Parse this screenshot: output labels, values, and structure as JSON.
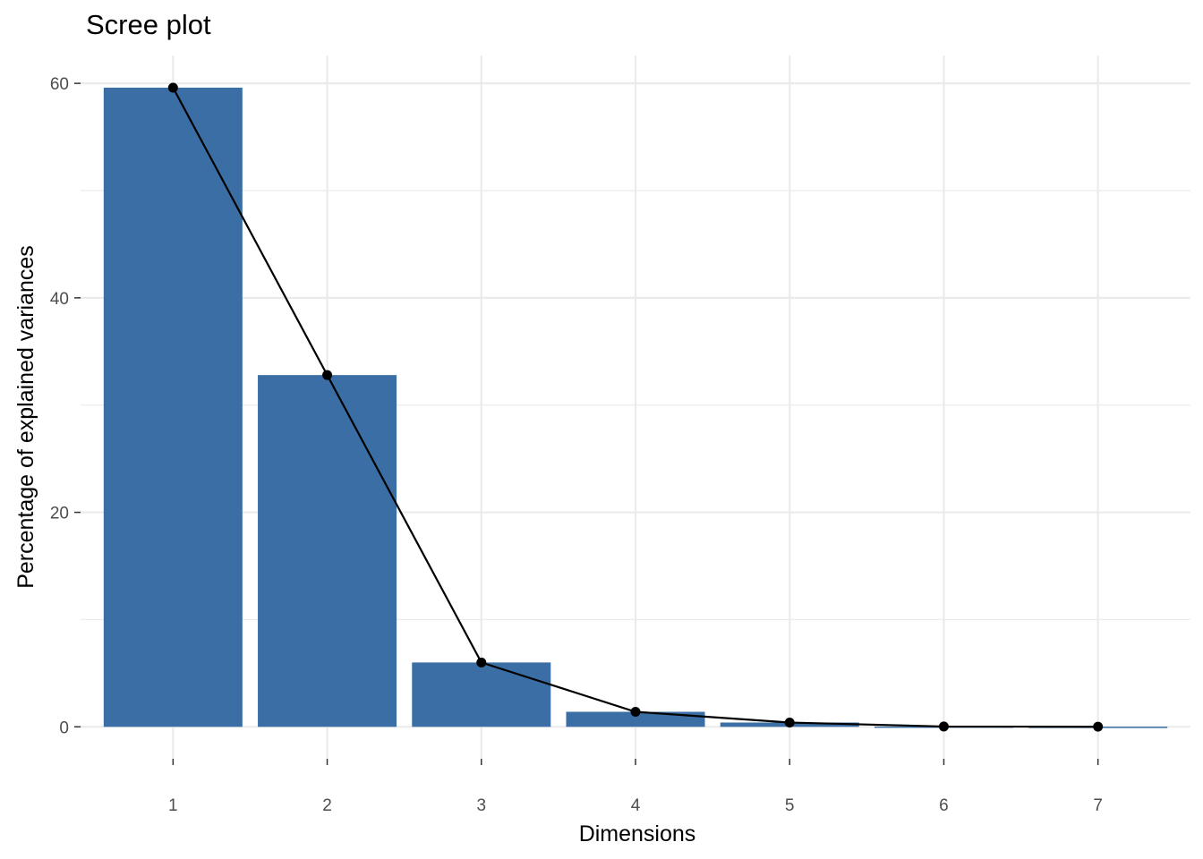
{
  "colors": {
    "bar": "#3a6ea5",
    "line": "#000000",
    "grid": "#ebebeb",
    "tick_text": "#4d4d4d"
  },
  "chart_data": {
    "type": "bar",
    "title": "Scree plot",
    "xlabel": "Dimensions",
    "ylabel": "Percentage of explained variances",
    "categories": [
      "1",
      "2",
      "3",
      "4",
      "5",
      "6",
      "7"
    ],
    "values": [
      59.6,
      32.8,
      6.0,
      1.4,
      0.4,
      0.03,
      0.01
    ],
    "overlay_line": {
      "values": [
        59.6,
        32.8,
        6.0,
        1.4,
        0.4,
        0.03,
        0.01
      ]
    },
    "ylim": [
      -2.98,
      62.6
    ],
    "yticks": [
      0,
      20,
      40,
      60
    ],
    "grid": true
  }
}
